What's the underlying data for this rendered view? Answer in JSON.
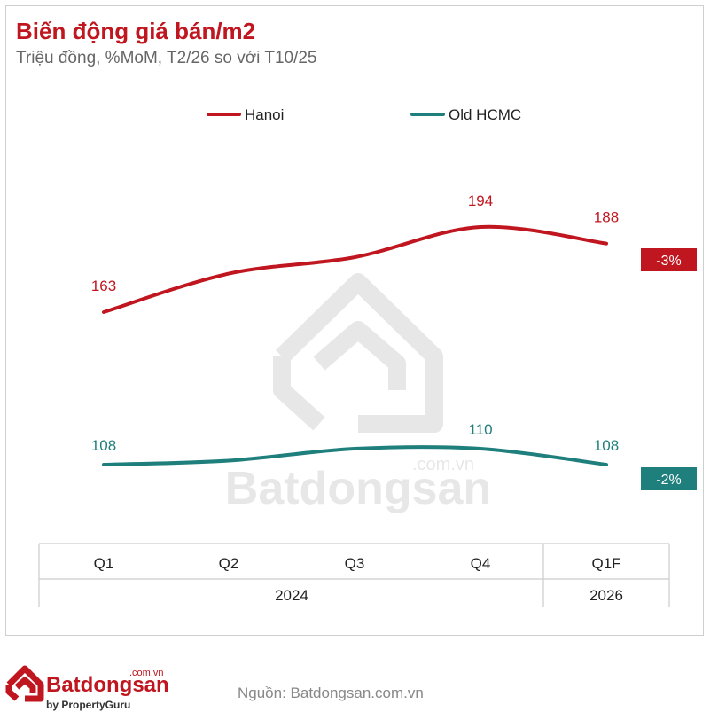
{
  "header": {
    "title": "Biến động giá bán/m2",
    "subtitle": "Triệu đồng, %MoM, T2/26 so với T10/25"
  },
  "chart_data": {
    "type": "line",
    "categories": [
      "Q1",
      "Q2",
      "Q3",
      "Q4",
      "Q1F"
    ],
    "groups": [
      {
        "label": "2024",
        "span": [
          "Q1",
          "Q4"
        ]
      },
      {
        "label": "2026",
        "span": [
          "Q1F",
          "Q1F"
        ]
      }
    ],
    "series": [
      {
        "name": "Hanoi",
        "color": "#c0161f",
        "values": [
          163,
          177,
          183,
          194,
          188
        ],
        "point_labels": [
          "163",
          "",
          "",
          "194",
          "188"
        ],
        "change_badge": "-3%"
      },
      {
        "name": "Old HCMC",
        "color": "#1f7f7c",
        "values": [
          108,
          108.5,
          110,
          110,
          108
        ],
        "point_labels": [
          "108",
          "",
          "",
          "110",
          "108"
        ],
        "change_badge": "-2%"
      }
    ],
    "legend_position": "top",
    "grid": false
  },
  "watermark": {
    "brand": "Batdongsan",
    "domain": ".com.vn"
  },
  "footer": {
    "logo_name": "Batdongsan",
    "logo_domain": ".com.vn",
    "logo_by": "by PropertyGuru",
    "source": "Nguồn: Batdongsan.com.vn"
  }
}
